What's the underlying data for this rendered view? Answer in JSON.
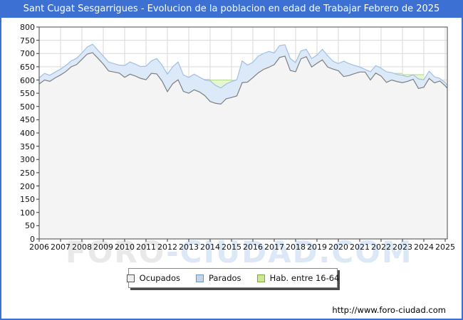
{
  "window": {
    "title": "Sant Cugat Sesgarrigues - Evolucion de la poblacion en edad de Trabajar Febrero de 2025"
  },
  "watermark": {
    "part1": "FORO",
    "part2": "-CIUDAD.COM"
  },
  "footer": {
    "url": "http://www.foro-ciudad.com"
  },
  "colors": {
    "titlebar_bg": "#3c70d2",
    "titlebar_text": "#ffffff",
    "frame_border": "#3c70d2",
    "grid": "#d9d9d9",
    "plot_border": "#4a4a4a",
    "tick": "#333333",
    "ocupados_fill": "#f4f4f4",
    "ocupados_line": "#7f7f7f",
    "parados_fill": "#dce9f8",
    "parados_line": "#9fc0e4",
    "hab_fill": "#e6f7d0",
    "hab_line": "#b2d88a",
    "watermark_gray": "#e9e9e9",
    "watermark_blue": "#dde8f6"
  },
  "legend": {
    "items": [
      {
        "label": "Ocupados",
        "color": "#eeeeee",
        "border": "#555555"
      },
      {
        "label": "Parados",
        "color": "#c2d6ee",
        "border": "#6f94c0"
      },
      {
        "label": "Hab. entre 16-64",
        "color": "#cbe794",
        "border": "#7da83f"
      }
    ]
  },
  "chart_data": {
    "type": "area",
    "title": "Sant Cugat Sesgarrigues - Evolucion de la poblacion en edad de Trabajar Febrero de 2025",
    "xlabel": "",
    "ylabel": "",
    "grid": true,
    "legend_position": "bottom",
    "x_axis": {
      "min": 2006,
      "max": 2025.1,
      "tick_years": [
        2006,
        2007,
        2008,
        2009,
        2010,
        2011,
        2012,
        2013,
        2014,
        2015,
        2016,
        2017,
        2018,
        2019,
        2020,
        2021,
        2022,
        2023,
        2024,
        2025
      ]
    },
    "y_axis": {
      "min": 0,
      "max": 800,
      "tick_step": 50,
      "ticks": [
        0,
        50,
        100,
        150,
        200,
        250,
        300,
        350,
        400,
        450,
        500,
        550,
        600,
        650,
        700,
        750,
        800
      ]
    },
    "series": [
      {
        "name": "Ocupados",
        "x": [
          2006,
          2006.25,
          2006.5,
          2006.75,
          2007,
          2007.25,
          2007.5,
          2007.75,
          2008,
          2008.25,
          2008.5,
          2008.75,
          2009,
          2009.25,
          2009.5,
          2009.75,
          2010,
          2010.25,
          2010.5,
          2010.75,
          2011,
          2011.25,
          2011.5,
          2011.75,
          2012,
          2012.25,
          2012.5,
          2012.75,
          2013,
          2013.25,
          2013.5,
          2013.75,
          2014,
          2014.25,
          2014.5,
          2014.75,
          2015,
          2015.25,
          2015.5,
          2015.75,
          2016,
          2016.25,
          2016.5,
          2016.75,
          2017,
          2017.25,
          2017.5,
          2017.75,
          2018,
          2018.25,
          2018.5,
          2018.75,
          2019,
          2019.25,
          2019.5,
          2019.75,
          2020,
          2020.25,
          2020.5,
          2020.75,
          2021,
          2021.25,
          2021.5,
          2021.75,
          2022,
          2022.25,
          2022.5,
          2022.75,
          2023,
          2023.25,
          2023.5,
          2023.75,
          2024,
          2024.25,
          2024.5,
          2024.75,
          2025,
          2025.08
        ],
        "values": [
          585,
          600,
          595,
          608,
          619,
          632,
          650,
          658,
          678,
          698,
          703,
          682,
          660,
          634,
          630,
          626,
          610,
          622,
          615,
          606,
          601,
          625,
          623,
          596,
          556,
          586,
          601,
          557,
          550,
          563,
          555,
          541,
          519,
          512,
          509,
          529,
          534,
          540,
          590,
          592,
          609,
          627,
          640,
          648,
          658,
          685,
          690,
          636,
          631,
          680,
          688,
          649,
          663,
          676,
          649,
          641,
          635,
          613,
          617,
          624,
          630,
          630,
          600,
          626,
          615,
          591,
          600,
          594,
          590,
          595,
          603,
          568,
          573,
          606,
          589,
          596,
          578,
          570
        ]
      },
      {
        "name": "Parados",
        "stacked_on": "Ocupados",
        "x": [
          2006,
          2006.25,
          2006.5,
          2006.75,
          2007,
          2007.25,
          2007.5,
          2007.75,
          2008,
          2008.25,
          2008.5,
          2008.75,
          2009,
          2009.25,
          2009.5,
          2009.75,
          2010,
          2010.25,
          2010.5,
          2010.75,
          2011,
          2011.25,
          2011.5,
          2011.75,
          2012,
          2012.25,
          2012.5,
          2012.75,
          2013,
          2013.25,
          2013.5,
          2013.75,
          2014,
          2014.25,
          2014.5,
          2014.75,
          2015,
          2015.25,
          2015.5,
          2015.75,
          2016,
          2016.25,
          2016.5,
          2016.75,
          2017,
          2017.25,
          2017.5,
          2017.75,
          2018,
          2018.25,
          2018.5,
          2018.75,
          2019,
          2019.25,
          2019.5,
          2019.75,
          2020,
          2020.25,
          2020.5,
          2020.75,
          2021,
          2021.25,
          2021.5,
          2021.75,
          2022,
          2022.25,
          2022.5,
          2022.75,
          2023,
          2023.25,
          2023.5,
          2023.75,
          2024,
          2024.25,
          2024.5,
          2024.75,
          2025,
          2025.08
        ],
        "values": [
          23,
          25,
          23,
          22,
          22,
          23,
          22,
          24,
          24,
          27,
          32,
          30,
          30,
          34,
          32,
          30,
          45,
          46,
          45,
          45,
          51,
          47,
          58,
          60,
          66,
          64,
          67,
          62,
          60,
          59,
          56,
          59,
          78,
          68,
          61,
          56,
          60,
          61,
          82,
          64,
          58,
          63,
          60,
          60,
          44,
          45,
          43,
          45,
          35,
          30,
          28,
          32,
          31,
          40,
          43,
          30,
          27,
          58,
          45,
          31,
          19,
          10,
          31,
          28,
          30,
          40,
          28,
          27,
          28,
          17,
          17,
          36,
          28,
          27,
          23,
          10,
          12,
          12
        ]
      },
      {
        "name": "Hab. entre 16-64",
        "render": "annual-step, drawn behind the stacked areas; visible only where it exceeds Ocupados+Parados",
        "step_years": [
          2013,
          2014,
          2015,
          2022,
          2023
        ],
        "values": [
          602,
          600,
          597,
          625,
          620
        ]
      }
    ]
  }
}
